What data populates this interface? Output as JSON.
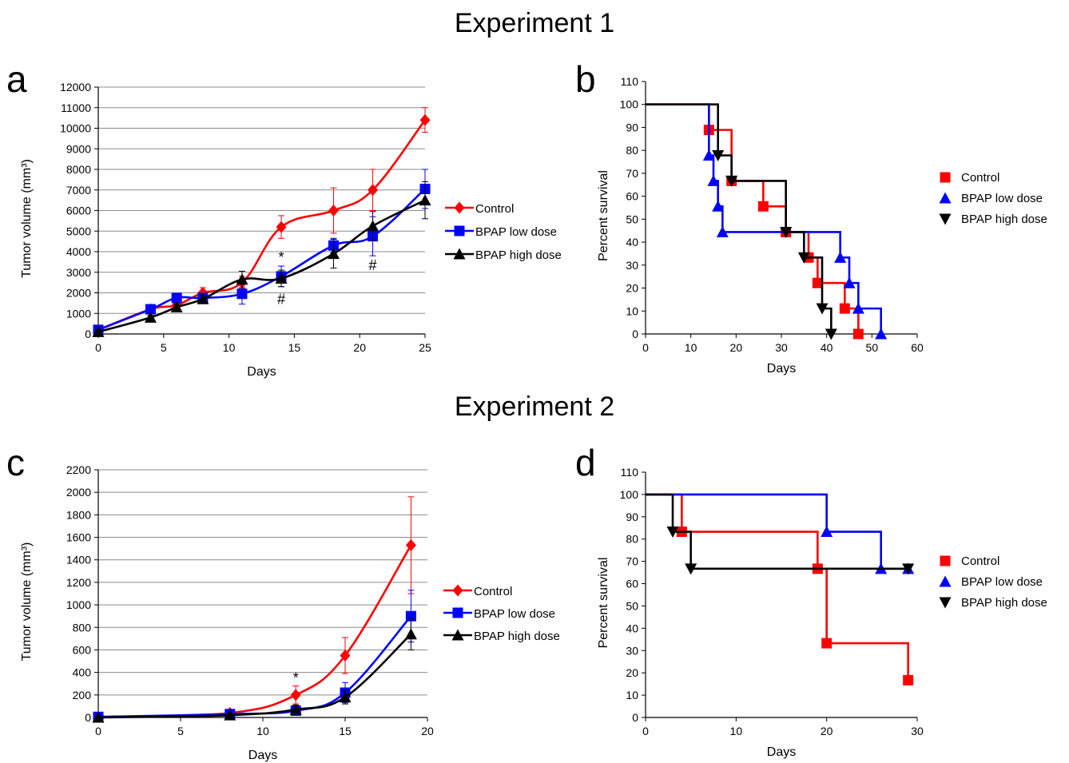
{
  "titles": {
    "experiment1": "Experiment 1",
    "experiment2": "Experiment 2"
  },
  "panel_letters": {
    "a": "a",
    "b": "b",
    "c": "c",
    "d": "d"
  },
  "chart_data": [
    {
      "panel": "a",
      "type": "line",
      "xlabel": "Days",
      "ylabel": "Tumor volume (mm³)",
      "xlim": [
        0,
        25
      ],
      "ylim": [
        0,
        12000
      ],
      "xticks": [
        0,
        5,
        10,
        15,
        20,
        25
      ],
      "yticks": [
        0,
        1000,
        2000,
        3000,
        4000,
        5000,
        6000,
        7000,
        8000,
        9000,
        10000,
        11000,
        12000
      ],
      "grid": true,
      "legend": "right",
      "annotations": [
        {
          "text": "*",
          "x": 14,
          "y": 3500
        },
        {
          "text": "#",
          "x": 14,
          "y": 1450
        },
        {
          "text": "#",
          "x": 21,
          "y": 3100
        }
      ],
      "series": [
        {
          "name": "Control",
          "color": "#ff0000",
          "marker": "diamond",
          "x": [
            0,
            4,
            6,
            8,
            11,
            14,
            18,
            21,
            25
          ],
          "y": [
            200,
            1200,
            1400,
            2000,
            2500,
            5200,
            6000,
            7000,
            10400
          ],
          "err": [
            100,
            150,
            200,
            250,
            300,
            550,
            1100,
            1000,
            600
          ]
        },
        {
          "name": "BPAP low dose",
          "color": "#0000ff",
          "marker": "square",
          "x": [
            0,
            4,
            6,
            8,
            11,
            14,
            18,
            21,
            25
          ],
          "y": [
            200,
            1200,
            1750,
            1750,
            1950,
            2800,
            4300,
            4750,
            7050
          ],
          "err": [
            100,
            150,
            150,
            200,
            500,
            500,
            350,
            950,
            950
          ]
        },
        {
          "name": "BPAP high dose",
          "color": "#000000",
          "marker": "triangle",
          "x": [
            0,
            4,
            6,
            8,
            11,
            14,
            18,
            21,
            25
          ],
          "y": [
            100,
            800,
            1300,
            1700,
            2650,
            2700,
            3900,
            5250,
            6500
          ],
          "err": [
            100,
            100,
            150,
            200,
            400,
            400,
            700,
            700,
            900
          ]
        }
      ]
    },
    {
      "panel": "b",
      "type": "line",
      "xlabel": "Days",
      "ylabel": "Percent survival",
      "xlim": [
        0,
        60
      ],
      "ylim": [
        0,
        110
      ],
      "xticks": [
        0,
        10,
        20,
        30,
        40,
        50,
        60
      ],
      "yticks": [
        0,
        10,
        20,
        30,
        40,
        50,
        60,
        70,
        80,
        90,
        100,
        110
      ],
      "grid": false,
      "legend": "right",
      "series": [
        {
          "name": "Control",
          "color": "#ff0000",
          "marker": "square",
          "steps": [
            [
              0,
              100
            ],
            [
              14,
              88.9
            ],
            [
              19,
              66.7
            ],
            [
              26,
              55.6
            ],
            [
              31,
              44.4
            ],
            [
              36,
              33.3
            ],
            [
              38,
              22.2
            ],
            [
              44,
              11.1
            ],
            [
              47,
              0
            ]
          ]
        },
        {
          "name": "BPAP low dose",
          "color": "#0000ff",
          "marker": "triangle",
          "steps": [
            [
              0,
              100
            ],
            [
              14,
              77.8
            ],
            [
              15,
              66.7
            ],
            [
              16,
              55.6
            ],
            [
              17,
              44.4
            ],
            [
              43,
              33.3
            ],
            [
              45,
              22.2
            ],
            [
              47,
              11.1
            ],
            [
              52,
              0
            ]
          ]
        },
        {
          "name": "BPAP high dose",
          "color": "#000000",
          "marker": "triangle-down",
          "steps": [
            [
              0,
              100
            ],
            [
              16,
              77.8
            ],
            [
              19,
              66.7
            ],
            [
              31,
              44.4
            ],
            [
              35,
              33.3
            ],
            [
              39,
              11.1
            ],
            [
              41,
              0
            ]
          ]
        }
      ]
    },
    {
      "panel": "c",
      "type": "line",
      "xlabel": "Days",
      "ylabel": "Tumor volume (mm³)",
      "xlim": [
        0,
        20
      ],
      "ylim": [
        0,
        2200
      ],
      "xticks": [
        0,
        5,
        10,
        15,
        20
      ],
      "yticks": [
        0,
        200,
        400,
        600,
        800,
        1000,
        1200,
        1400,
        1600,
        1800,
        2000,
        2200
      ],
      "grid": true,
      "legend": "right",
      "annotations": [
        {
          "text": "*",
          "x": 12,
          "y": 310
        }
      ],
      "series": [
        {
          "name": "Control",
          "color": "#ff0000",
          "marker": "diamond",
          "x": [
            0,
            8,
            12,
            15,
            19
          ],
          "y": [
            5,
            40,
            200,
            550,
            1530
          ],
          "err": [
            5,
            15,
            80,
            160,
            430
          ]
        },
        {
          "name": "BPAP low dose",
          "color": "#0000ff",
          "marker": "square",
          "x": [
            0,
            8,
            12,
            15,
            19
          ],
          "y": [
            5,
            30,
            60,
            220,
            900
          ],
          "err": [
            5,
            10,
            30,
            90,
            230
          ]
        },
        {
          "name": "BPAP high dose",
          "color": "#000000",
          "marker": "triangle",
          "x": [
            0,
            8,
            12,
            15,
            19
          ],
          "y": [
            0,
            20,
            70,
            180,
            740
          ],
          "err": [
            5,
            10,
            40,
            60,
            140
          ]
        }
      ]
    },
    {
      "panel": "d",
      "type": "line",
      "xlabel": "Days",
      "ylabel": "Percent survival",
      "xlim": [
        0,
        30
      ],
      "ylim": [
        0,
        110
      ],
      "xticks": [
        0,
        10,
        20,
        30
      ],
      "yticks": [
        0,
        10,
        20,
        30,
        40,
        50,
        60,
        70,
        80,
        90,
        100,
        110
      ],
      "grid": false,
      "legend": "right",
      "series": [
        {
          "name": "Control",
          "color": "#ff0000",
          "marker": "square",
          "steps": [
            [
              0,
              100
            ],
            [
              4,
              83.3
            ],
            [
              19,
              66.7
            ],
            [
              20,
              33.3
            ],
            [
              29,
              16.7
            ]
          ]
        },
        {
          "name": "BPAP low dose",
          "color": "#0000ff",
          "marker": "triangle",
          "steps": [
            [
              0,
              100
            ],
            [
              20,
              83.3
            ],
            [
              26,
              66.7
            ],
            [
              29,
              66.7
            ]
          ]
        },
        {
          "name": "BPAP high dose",
          "color": "#000000",
          "marker": "triangle-down",
          "steps": [
            [
              0,
              100
            ],
            [
              3,
              83.3
            ],
            [
              5,
              66.7
            ],
            [
              29,
              66.7
            ]
          ]
        }
      ]
    }
  ]
}
